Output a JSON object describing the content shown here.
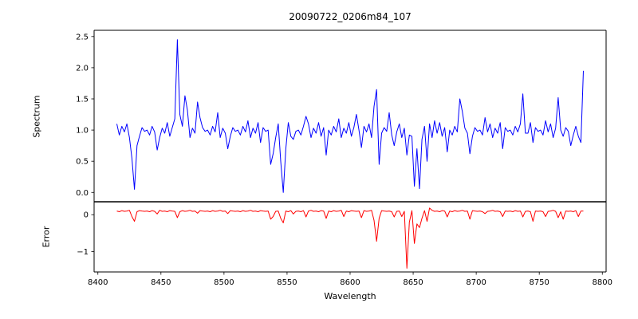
{
  "figure": {
    "title": "20090722_0206m84_107",
    "xlabel": "Wavelength",
    "ylabel_top": "Spectrum",
    "ylabel_bottom": "Error",
    "background": "#ffffff"
  },
  "chart_data": {
    "type": "line",
    "title": "20090722_0206m84_107",
    "xlabel": "Wavelength",
    "grid": false,
    "legend": "none",
    "x_start": 8415,
    "x_step": 2,
    "xlim": [
      8397,
      8803
    ],
    "xticks": [
      8400,
      8450,
      8500,
      8550,
      8600,
      8650,
      8700,
      8750,
      8800
    ],
    "panels": [
      {
        "name": "spectrum",
        "ylabel": "Spectrum",
        "color": "#0000ff",
        "ylim": [
          -0.15,
          2.6
        ],
        "yticks": [
          0.0,
          0.5,
          1.0,
          1.5,
          2.0,
          2.5
        ],
        "ytick_decimals": 1,
        "values": [
          1.1,
          0.92,
          1.06,
          0.97,
          1.1,
          0.88,
          0.55,
          0.05,
          0.75,
          0.9,
          1.04,
          0.98,
          1.0,
          0.92,
          1.06,
          0.97,
          0.68,
          0.88,
          1.03,
          0.95,
          1.12,
          0.9,
          1.04,
          1.18,
          2.45,
          1.25,
          1.06,
          1.55,
          1.32,
          0.88,
          1.03,
          0.95,
          1.45,
          1.2,
          1.04,
          0.98,
          1.0,
          0.92,
          1.06,
          0.97,
          1.28,
          0.88,
          1.03,
          0.95,
          0.7,
          0.9,
          1.04,
          0.98,
          1.0,
          0.92,
          1.06,
          0.97,
          1.15,
          0.88,
          1.03,
          0.95,
          1.12,
          0.8,
          1.04,
          0.98,
          1.0,
          0.45,
          0.62,
          0.88,
          1.1,
          0.5,
          0.0,
          0.7,
          1.12,
          0.9,
          0.85,
          0.98,
          1.0,
          0.92,
          1.06,
          1.22,
          1.1,
          0.88,
          1.03,
          0.95,
          1.12,
          0.9,
          1.04,
          0.6,
          1.0,
          0.92,
          1.06,
          0.97,
          1.18,
          0.88,
          1.03,
          0.95,
          1.12,
          0.9,
          1.04,
          1.25,
          1.0,
          0.72,
          1.06,
          0.97,
          1.1,
          0.88,
          1.38,
          1.65,
          0.45,
          0.95,
          1.04,
          0.98,
          1.28,
          0.92,
          0.75,
          0.97,
          1.1,
          0.88,
          1.03,
          0.6,
          0.92,
          0.9,
          0.1,
          0.7,
          0.06,
          0.85,
          1.06,
          0.5,
          1.1,
          0.88,
          1.15,
          0.95,
          1.12,
          0.9,
          1.04,
          0.65,
          1.0,
          0.92,
          1.06,
          0.97,
          1.5,
          1.3,
          1.03,
          0.95,
          0.62,
          0.9,
          1.04,
          0.98,
          1.0,
          0.92,
          1.2,
          0.97,
          1.1,
          0.88,
          1.03,
          0.95,
          1.12,
          0.7,
          1.04,
          0.98,
          1.0,
          0.92,
          1.06,
          0.97,
          1.1,
          1.58,
          0.95,
          0.95,
          1.12,
          0.8,
          1.04,
          0.98,
          1.0,
          0.92,
          1.15,
          0.97,
          1.1,
          0.88,
          1.03,
          1.52,
          1.0,
          0.9,
          1.04,
          0.98,
          0.75,
          0.92,
          1.06,
          0.9,
          0.8,
          1.95
        ]
      },
      {
        "name": "error",
        "ylabel": "Error",
        "color": "#ff0000",
        "ylim": [
          -1.55,
          0.35
        ],
        "yticks": [
          0,
          -1
        ],
        "ytick_decimals": 0,
        "values": [
          0.1,
          0.08,
          0.11,
          0.09,
          0.1,
          0.12,
          -0.05,
          -0.18,
          0.08,
          0.11,
          0.1,
          0.09,
          0.1,
          0.08,
          0.11,
          0.09,
          0.02,
          0.12,
          0.09,
          0.1,
          0.08,
          0.11,
          0.1,
          0.09,
          -0.08,
          0.08,
          0.11,
          0.09,
          0.1,
          0.12,
          0.09,
          0.1,
          0.04,
          0.11,
          0.1,
          0.09,
          0.1,
          0.08,
          0.11,
          0.09,
          0.1,
          0.12,
          0.09,
          0.1,
          0.03,
          0.11,
          0.1,
          0.09,
          0.1,
          0.08,
          0.11,
          0.09,
          0.1,
          0.12,
          0.09,
          0.1,
          0.08,
          0.11,
          0.1,
          0.09,
          0.1,
          -0.12,
          -0.05,
          0.09,
          0.1,
          -0.1,
          -0.22,
          0.1,
          0.08,
          0.11,
          0.02,
          0.09,
          0.1,
          0.08,
          0.11,
          -0.06,
          0.1,
          0.12,
          0.09,
          0.1,
          0.08,
          0.11,
          0.1,
          -0.1,
          0.1,
          0.08,
          0.11,
          0.09,
          0.1,
          0.12,
          -0.05,
          0.1,
          0.08,
          0.11,
          0.1,
          0.09,
          0.1,
          -0.08,
          0.11,
          0.09,
          0.1,
          0.12,
          -0.15,
          -0.72,
          -0.1,
          0.11,
          0.1,
          0.09,
          0.1,
          0.08,
          -0.06,
          0.09,
          0.1,
          -0.05,
          0.09,
          -1.45,
          -0.2,
          0.11,
          -0.78,
          -0.25,
          -0.35,
          -0.1,
          0.11,
          -0.18,
          0.18,
          0.12,
          0.09,
          0.1,
          0.08,
          0.11,
          0.1,
          -0.06,
          0.1,
          0.08,
          0.11,
          0.09,
          0.1,
          0.12,
          0.09,
          0.1,
          -0.12,
          0.11,
          0.1,
          0.09,
          0.1,
          0.08,
          0.03,
          0.09,
          0.1,
          0.12,
          0.09,
          0.1,
          0.08,
          -0.05,
          0.1,
          0.09,
          0.1,
          0.08,
          0.11,
          0.09,
          0.1,
          -0.06,
          0.09,
          0.1,
          0.08,
          -0.18,
          0.1,
          0.09,
          0.1,
          0.08,
          -0.05,
          0.09,
          0.1,
          0.12,
          0.09,
          -0.08,
          0.08,
          -0.12,
          0.1,
          0.09,
          0.1,
          0.08,
          0.11,
          -0.05,
          0.1,
          0.1
        ]
      }
    ]
  }
}
